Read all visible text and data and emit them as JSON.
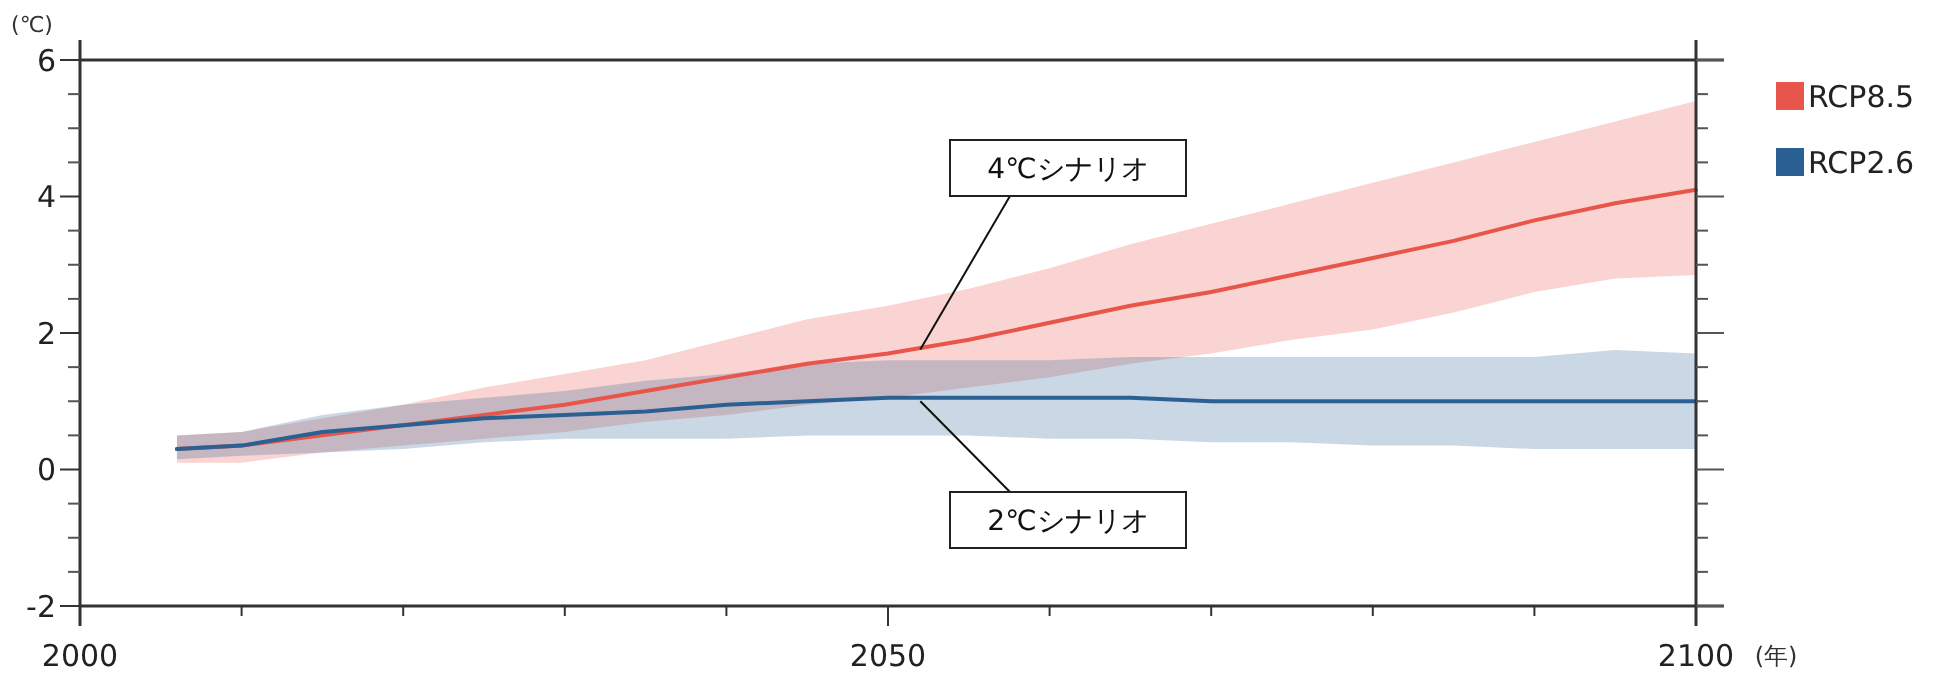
{
  "chart_data": {
    "type": "line",
    "xlabel": "(年)",
    "ylabel": "(℃)",
    "x": [
      2006,
      2010,
      2015,
      2020,
      2025,
      2030,
      2035,
      2040,
      2045,
      2050,
      2055,
      2060,
      2065,
      2070,
      2075,
      2080,
      2085,
      2090,
      2095,
      2100
    ],
    "series": [
      {
        "name": "RCP8.5",
        "color": "#e8554a",
        "values": [
          0.3,
          0.35,
          0.5,
          0.65,
          0.8,
          0.95,
          1.15,
          1.35,
          1.55,
          1.7,
          1.9,
          2.15,
          2.4,
          2.6,
          2.85,
          3.1,
          3.35,
          3.65,
          3.9,
          4.1
        ],
        "lower": [
          0.1,
          0.1,
          0.25,
          0.35,
          0.45,
          0.55,
          0.7,
          0.8,
          0.95,
          1.05,
          1.2,
          1.35,
          1.55,
          1.7,
          1.9,
          2.05,
          2.3,
          2.6,
          2.8,
          2.85
        ],
        "upper": [
          0.5,
          0.55,
          0.75,
          0.95,
          1.2,
          1.4,
          1.6,
          1.9,
          2.2,
          2.4,
          2.65,
          2.95,
          3.3,
          3.6,
          3.9,
          4.2,
          4.5,
          4.8,
          5.1,
          5.4
        ]
      },
      {
        "name": "RCP2.6",
        "color": "#2b6192",
        "values": [
          0.3,
          0.35,
          0.55,
          0.65,
          0.75,
          0.8,
          0.85,
          0.95,
          1.0,
          1.05,
          1.05,
          1.05,
          1.05,
          1.0,
          1.0,
          1.0,
          1.0,
          1.0,
          1.0,
          1.0
        ],
        "lower": [
          0.15,
          0.2,
          0.25,
          0.3,
          0.4,
          0.45,
          0.45,
          0.45,
          0.5,
          0.5,
          0.5,
          0.45,
          0.45,
          0.4,
          0.4,
          0.35,
          0.35,
          0.3,
          0.3,
          0.3
        ],
        "upper": [
          0.5,
          0.55,
          0.8,
          0.95,
          1.05,
          1.15,
          1.3,
          1.4,
          1.55,
          1.6,
          1.6,
          1.6,
          1.65,
          1.65,
          1.65,
          1.65,
          1.65,
          1.65,
          1.75,
          1.7
        ]
      }
    ],
    "annotations": [
      {
        "text": "4℃シナリオ",
        "x": 2052,
        "y": 1.76
      },
      {
        "text": "2℃シナリオ",
        "x": 2052,
        "y": 1.0
      }
    ],
    "xlim": [
      2000,
      2100
    ],
    "xticks": [
      2000,
      {
        "value": 2010,
        "label": null
      },
      {
        "value": 2020,
        "label": null
      },
      {
        "value": 2030,
        "label": null
      },
      {
        "value": 2040,
        "label": null
      },
      2050,
      {
        "value": 2060,
        "label": null
      },
      {
        "value": 2070,
        "label": null
      },
      {
        "value": 2080,
        "label": null
      },
      {
        "value": 2090,
        "label": null
      },
      2100
    ],
    "ylim": [
      -2,
      6
    ],
    "yticks": [
      -2,
      {
        "value": -1.5,
        "label": null
      },
      {
        "value": -1,
        "label": null
      },
      {
        "value": -0.5,
        "label": null
      },
      0,
      {
        "value": 0.5,
        "label": null
      },
      {
        "value": 1,
        "label": null
      },
      {
        "value": 1.5,
        "label": null
      },
      2,
      {
        "value": 2.5,
        "label": null
      },
      {
        "value": 3,
        "label": null
      },
      {
        "value": 3.5,
        "label": null
      },
      4,
      {
        "value": 4.5,
        "label": null
      },
      {
        "value": 5,
        "label": null
      },
      {
        "value": 5.5,
        "label": null
      },
      6
    ],
    "legend": "right",
    "grid": false,
    "marker": "none",
    "line_style": "solid"
  }
}
